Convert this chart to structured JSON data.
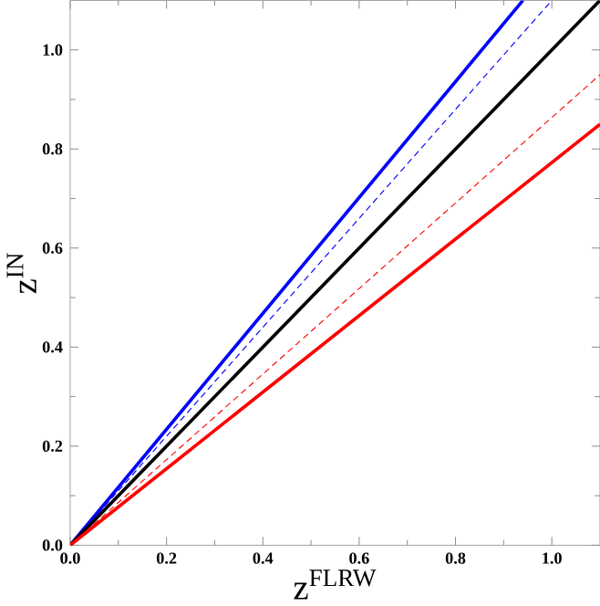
{
  "chart_data": {
    "type": "line",
    "xlabel": "z$^{FLRW}$",
    "ylabel": "z$^{IN}$",
    "xlim": [
      0,
      1.1
    ],
    "ylim": [
      0,
      1.1
    ],
    "xticks": [
      {
        "value": 0,
        "label": "0.0"
      },
      {
        "value": 0.2,
        "label": "0.2"
      },
      {
        "value": 0.4,
        "label": "0.4"
      },
      {
        "value": 0.6,
        "label": "0.6"
      },
      {
        "value": 0.8,
        "label": "0.8"
      },
      {
        "value": 1.0,
        "label": "1.0"
      }
    ],
    "yticks": [
      {
        "value": 0,
        "label": "0.0"
      },
      {
        "value": 0.2,
        "label": "0.2"
      },
      {
        "value": 0.4,
        "label": "0.4"
      },
      {
        "value": 0.6,
        "label": "0.6"
      },
      {
        "value": 0.8,
        "label": "0.8"
      },
      {
        "value": 1.0,
        "label": "1.0"
      }
    ],
    "marker": "none",
    "series": [
      {
        "color": "#0000ff",
        "line_style": "solid",
        "x": [
          0,
          0.94
        ],
        "values": [
          0,
          1.1
        ]
      },
      {
        "color": "#0000ff",
        "line_style": "dashed",
        "x": [
          0,
          1.0
        ],
        "values": [
          0,
          1.1
        ]
      },
      {
        "color": "#000000",
        "line_style": "solid",
        "x": [
          0,
          1.1
        ],
        "values": [
          0,
          1.1
        ]
      },
      {
        "color": "#ff0000",
        "line_style": "dashed",
        "x": [
          0,
          1.1
        ],
        "values": [
          0,
          0.95
        ]
      },
      {
        "color": "#ff0000",
        "line_style": "solid",
        "x": [
          0,
          1.1
        ],
        "values": [
          0,
          0.85
        ]
      }
    ]
  }
}
